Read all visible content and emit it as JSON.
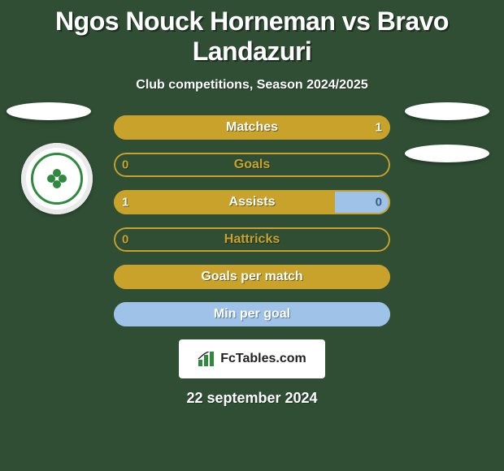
{
  "background_color": "#2f4e34",
  "title": {
    "text": "Ngos Nouck Horneman vs Bravo Landazuri",
    "color": "#ffffff",
    "shadow_color": "#1c2e1f",
    "fontsize": 32
  },
  "subtitle": {
    "text": "Club competitions, Season 2024/2025",
    "color": "#ffffff",
    "shadow_color": "#1f3424",
    "fontsize": 16
  },
  "bars_common": {
    "height": 30,
    "border_radius": 16,
    "border_width": 2,
    "label_fontsize": 16,
    "value_fontsize": 15,
    "gap": 16
  },
  "bars": [
    {
      "label": "Matches",
      "left_val": "",
      "right_val": "1",
      "fill_from": "right",
      "fill_pct": 100,
      "fill_color": "#c8a22a",
      "border_color": "#c8a22a",
      "label_color": "#ffffff",
      "label_shadow": "#6f5914",
      "value_color": "#ffffff",
      "value_shadow": "#6f5914"
    },
    {
      "label": "Goals",
      "left_val": "0",
      "right_val": "",
      "fill_from": "none",
      "fill_pct": 0,
      "fill_color": "#c8a22a",
      "border_color": "#c8a22a",
      "label_color": "#c8a22a",
      "label_shadow": "#1f3424",
      "value_color": "#c8a22a",
      "value_shadow": "#1f3424"
    },
    {
      "label": "Assists",
      "left_val": "1",
      "right_val": "0",
      "fill_from": "split",
      "fill_pct": 80,
      "fill_color_left": "#c8a22a",
      "fill_color_right": "#9fc2e8",
      "border_color": "#c8a22a",
      "label_color": "#ffffff",
      "label_shadow": "#6f5914",
      "value_color_left": "#ffffff",
      "value_shadow_left": "#6f5914",
      "value_color_right": "#3a5d87",
      "value_shadow_right": "rgba(0,0,0,0)"
    },
    {
      "label": "Hattricks",
      "left_val": "0",
      "right_val": "",
      "fill_from": "none",
      "fill_pct": 0,
      "fill_color": "#c8a22a",
      "border_color": "#c8a22a",
      "label_color": "#c8a22a",
      "label_shadow": "#1f3424",
      "value_color": "#c8a22a",
      "value_shadow": "#1f3424"
    },
    {
      "label": "Goals per match",
      "left_val": "",
      "right_val": "",
      "fill_from": "left",
      "fill_pct": 100,
      "fill_color": "#c8a22a",
      "border_color": "#c8a22a",
      "label_color": "#ffffff",
      "label_shadow": "#6f5914",
      "value_color": "#ffffff",
      "value_shadow": "#6f5914"
    },
    {
      "label": "Min per goal",
      "left_val": "",
      "right_val": "",
      "fill_from": "left",
      "fill_pct": 100,
      "fill_color": "#9fc2e8",
      "border_color": "#9fc2e8",
      "label_color": "#ffffff",
      "label_shadow": "#5a7da3",
      "value_color": "#ffffff",
      "value_shadow": "#5a7da3"
    }
  ],
  "logo": {
    "text": "FcTables.com",
    "text_color": "#222222",
    "box_bg": "#ffffff",
    "icon_bars": [
      "#2f8a3f",
      "#2f8a3f",
      "#2f8a3f"
    ]
  },
  "date": {
    "text": "22 september 2024",
    "color": "#ffffff",
    "shadow_color": "#1f3424",
    "fontsize": 18
  },
  "avatar_color": "#ffffff",
  "badge": {
    "ring_color": "#2f8a3f",
    "bg": "#ffffff"
  }
}
